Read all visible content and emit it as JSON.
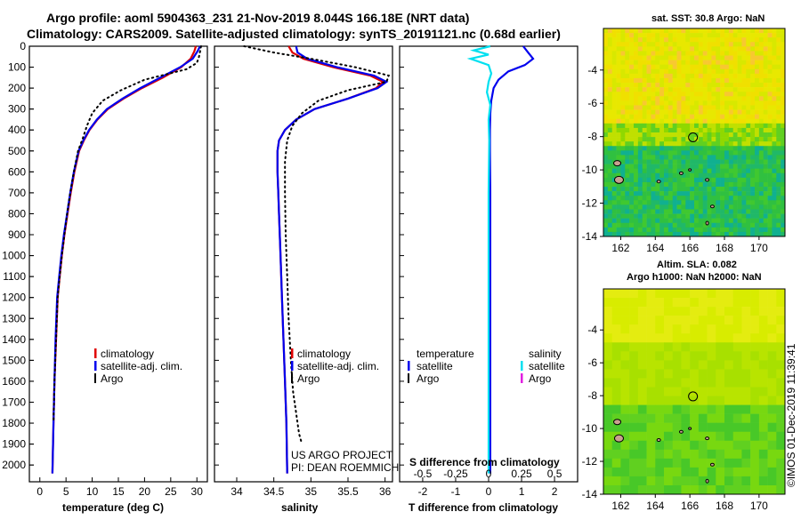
{
  "titles": {
    "line1": "Argo profile: aoml 5904363_231 21-Nov-2019 8.044S 166.18E (NRT data)",
    "line2": "Climatology: CARS2009. Satellite-adjusted climatology: synTS_20191121.nc (0.68d earlier)"
  },
  "credits": {
    "project": "US ARGO PROJECT",
    "pi": "PI: DEAN ROEMMICH",
    "imos": "©IMOS 01-Dec-2019 11:39:41"
  },
  "depth_ticks": [
    "0",
    "100",
    "200",
    "300",
    "400",
    "500",
    "600",
    "700",
    "800",
    "900",
    "1000",
    "1100",
    "1200",
    "1300",
    "1400",
    "1500",
    "1600",
    "1700",
    "1800",
    "1900",
    "2000"
  ],
  "colors": {
    "climatology": "#e00000",
    "satellite": "#0000ee",
    "argo": "#000000",
    "salinity_satellite": "#00e0f0",
    "salinity_argo": "#e020e0"
  },
  "chart_data": [
    {
      "type": "line",
      "panel": "temperature",
      "xlabel": "temperature (deg C)",
      "x_ticks": [
        "0",
        "5",
        "10",
        "15",
        "20",
        "25",
        "30"
      ],
      "xlim": [
        -2,
        32
      ],
      "ylim": [
        2080,
        0
      ],
      "legend": {
        "climatology": "climatology",
        "satellite": "satellite-adj. clim.",
        "argo": "Argo"
      },
      "legend_position": "lower-right",
      "series": [
        {
          "name": "climatology",
          "style": "solid",
          "color": "#e00000",
          "x": [
            29.8,
            29.5,
            28.8,
            27.0,
            23.5,
            19.5,
            16.0,
            13.0,
            11.0,
            9.5,
            8.4,
            7.5,
            6.6,
            5.9,
            5.3,
            4.7,
            4.2,
            3.8,
            3.4,
            3.1,
            2.8,
            2.6,
            2.4
          ],
          "y": [
            0,
            25,
            60,
            100,
            150,
            200,
            250,
            300,
            350,
            400,
            450,
            500,
            600,
            700,
            800,
            900,
            1000,
            1100,
            1200,
            1400,
            1600,
            1800,
            2040
          ]
        },
        {
          "name": "satellite-adj. clim.",
          "style": "solid",
          "color": "#0000ee",
          "x": [
            30.6,
            30.1,
            29.2,
            26.8,
            23.0,
            19.2,
            15.8,
            12.8,
            10.9,
            9.4,
            8.3,
            7.4,
            6.5,
            5.8,
            5.2,
            4.6,
            4.1,
            3.7,
            3.3,
            3.0,
            2.8,
            2.6,
            2.4
          ],
          "y": [
            0,
            25,
            60,
            100,
            150,
            200,
            250,
            300,
            350,
            400,
            450,
            500,
            600,
            700,
            800,
            900,
            1000,
            1100,
            1200,
            1400,
            1600,
            1800,
            2040
          ]
        },
        {
          "name": "Argo",
          "style": "dotted",
          "color": "#000000",
          "x": [
            30.8,
            30.6,
            30.4,
            30.0,
            28.0,
            20.0,
            15.5,
            12.0,
            10.0,
            9.0,
            8.2,
            7.3,
            6.5,
            5.8,
            5.2,
            4.7,
            4.2,
            3.8,
            3.4,
            3.1,
            2.8,
            2.6
          ],
          "y": [
            0,
            25,
            50,
            80,
            110,
            160,
            210,
            260,
            320,
            380,
            440,
            500,
            600,
            700,
            800,
            900,
            1000,
            1100,
            1200,
            1400,
            1600,
            1800
          ]
        }
      ]
    },
    {
      "type": "line",
      "panel": "salinity",
      "xlabel": "salinity",
      "x_ticks": [
        "34",
        "34.5",
        "35",
        "35.5",
        "36"
      ],
      "xlim": [
        33.7,
        36.1
      ],
      "ylim": [
        2080,
        0
      ],
      "legend": {
        "climatology": "climatology",
        "satellite": "satellite-adj. clim.",
        "argo": "Argo"
      },
      "legend_position": "lower-right",
      "series": [
        {
          "name": "climatology",
          "style": "solid",
          "color": "#e00000",
          "x": [
            34.7,
            34.75,
            34.9,
            35.3,
            35.8,
            35.97,
            35.88,
            35.5,
            35.05,
            34.8,
            34.65,
            34.57,
            34.55,
            34.55,
            34.56,
            34.57,
            34.59,
            34.61,
            34.63,
            34.65,
            34.67,
            34.68
          ],
          "y": [
            0,
            30,
            60,
            100,
            140,
            170,
            200,
            250,
            300,
            350,
            400,
            450,
            500,
            600,
            700,
            800,
            1000,
            1200,
            1400,
            1600,
            1800,
            2040
          ]
        },
        {
          "name": "satellite-adj. clim.",
          "style": "solid",
          "color": "#0000ee",
          "x": [
            34.8,
            34.82,
            34.95,
            35.35,
            35.85,
            36.02,
            35.9,
            35.5,
            35.05,
            34.8,
            34.65,
            34.57,
            34.55,
            34.55,
            34.56,
            34.57,
            34.59,
            34.61,
            34.63,
            34.65,
            34.67,
            34.68
          ],
          "y": [
            0,
            30,
            60,
            100,
            140,
            170,
            200,
            250,
            300,
            350,
            400,
            450,
            500,
            600,
            700,
            800,
            1000,
            1200,
            1400,
            1600,
            1800,
            2040
          ]
        },
        {
          "name": "Argo",
          "style": "dotted",
          "color": "#000000",
          "x": [
            34.1,
            34.5,
            35.0,
            35.6,
            36.05,
            36.02,
            35.5,
            35.1,
            34.88,
            34.75,
            34.68,
            34.65,
            34.65,
            34.66,
            34.68,
            34.7,
            34.73,
            34.76,
            34.8,
            34.84,
            34.88
          ],
          "y": [
            0,
            30,
            60,
            100,
            140,
            170,
            210,
            260,
            320,
            380,
            450,
            550,
            700,
            900,
            1100,
            1300,
            1500,
            1650,
            1750,
            1850,
            1900
          ]
        }
      ]
    },
    {
      "type": "line",
      "panel": "difference",
      "xlabel": "T difference from climatology",
      "x_ticks": [
        "-2",
        "-1",
        "0",
        "1",
        "2"
      ],
      "xlim": [
        -2.7,
        2.7
      ],
      "s_axis_label": "S difference from climatology",
      "s_ticks": [
        "-0.5",
        "-0.25",
        "0",
        "0.25",
        "0.5"
      ],
      "ylim": [
        2080,
        0
      ],
      "legend": {
        "temperature": "temperature",
        "salinity": "salinity",
        "satellite": "satellite",
        "argo": "Argo"
      },
      "series": [
        {
          "name": "temperature satellite",
          "style": "solid",
          "color": "#0000ee",
          "x": [
            1.05,
            1.2,
            1.35,
            1.1,
            0.6,
            0.3,
            0.15,
            0.08,
            0.05,
            0.04,
            0.04,
            0.05,
            0.05,
            0.05,
            0.05,
            0.05
          ],
          "y": [
            0,
            30,
            60,
            90,
            120,
            160,
            200,
            260,
            320,
            400,
            500,
            700,
            1000,
            1400,
            1800,
            2040
          ]
        },
        {
          "name": "salinity satellite",
          "style": "solid",
          "color": "#00e0f0",
          "x": [
            0.05,
            -0.45,
            0.0,
            -0.55,
            0.0,
            0.08,
            0.0,
            -0.05,
            0.05,
            0.0,
            0.02,
            0.0,
            0.0,
            0.0,
            0.0,
            0.0
          ],
          "y": [
            0,
            20,
            40,
            60,
            90,
            130,
            170,
            220,
            280,
            350,
            450,
            700,
            1000,
            1400,
            1800,
            2040
          ]
        }
      ]
    },
    {
      "type": "heatmap",
      "panel": "map-sst",
      "title": "sat. SST: 30.8 Argo: NaN",
      "x_ticks": [
        "162",
        "164",
        "166",
        "168",
        "170"
      ],
      "y_ticks": [
        "-4",
        "-6",
        "-8",
        "-10",
        "-12",
        "-14"
      ],
      "xlim": [
        161,
        171.5
      ],
      "ylim": [
        -14,
        -1.5
      ],
      "marker": {
        "lon": 166.18,
        "lat": -8.044
      }
    },
    {
      "type": "heatmap",
      "panel": "map-sla",
      "title_line1": "Altim. SLA: 0.082",
      "title_line2": "Argo h1000: NaN h2000: NaN",
      "x_ticks": [
        "162",
        "164",
        "166",
        "168",
        "170"
      ],
      "y_ticks": [
        "-4",
        "-6",
        "-8",
        "-10",
        "-12",
        "-14"
      ],
      "xlim": [
        161,
        171.5
      ],
      "ylim": [
        -14,
        -1.5
      ],
      "marker": {
        "lon": 166.18,
        "lat": -8.044
      }
    }
  ]
}
